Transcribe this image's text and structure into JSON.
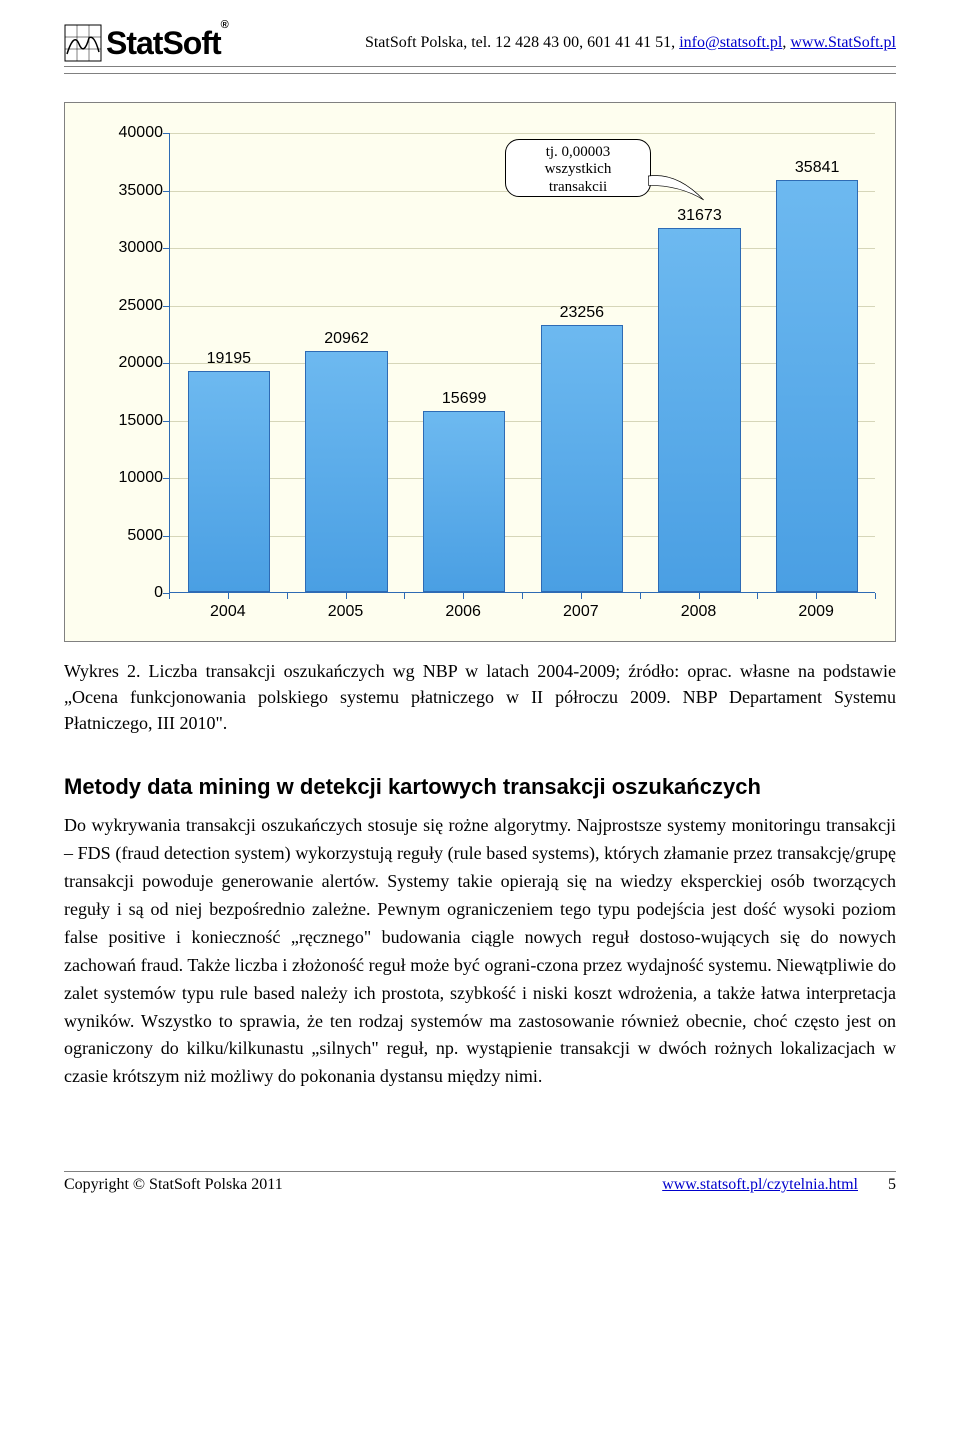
{
  "header": {
    "company": "StatSoft",
    "reg": "®",
    "contact_prefix": "StatSoft Polska, tel. 12 428 43 00, 601 41 41 51, ",
    "email": "info@statsoft.pl",
    "contact_sep": ", ",
    "url": "www.StatSoft.pl"
  },
  "chart": {
    "type": "bar",
    "background_color": "#fefeef",
    "plot_border_color": "#2e6bb4",
    "grid_color": "#d6d6b9",
    "axis_font": "Arial",
    "axis_fontsize": 16,
    "label_fontsize": 16,
    "ylim_min": 0,
    "ylim_max": 40000,
    "ytick_step": 5000,
    "yticks": [
      0,
      5000,
      10000,
      15000,
      20000,
      25000,
      30000,
      35000,
      40000
    ],
    "categories": [
      "2004",
      "2005",
      "2006",
      "2007",
      "2008",
      "2009"
    ],
    "values": [
      19195,
      20962,
      15699,
      23256,
      31673,
      35841
    ],
    "value_labels": [
      "19195",
      "20962",
      "15699",
      "23256",
      "31673",
      "35841"
    ],
    "bar_width": 0.7,
    "bar_top_color": "#6db9f0",
    "bar_bottom_color": "#4a9fe3",
    "bar_border_color": "#2e6bb4",
    "callout_lines": [
      "tj. 0,00003",
      "wszystkich",
      "transakcii"
    ]
  },
  "caption": {
    "text": "Wykres 2. Liczba transakcji oszukańczych wg NBP w latach 2004-2009; źródło: oprac. własne na podstawie „Ocena funkcjonowania polskiego systemu płatniczego w II półroczu 2009. NBP Departament Systemu Płatniczego, III 2010\"."
  },
  "section": {
    "title": "Metody data mining w detekcji kartowych transakcji oszukańczych",
    "body": "Do wykrywania transakcji oszukańczych stosuje się rożne algorytmy. Najprostsze systemy monitoringu transakcji – FDS (fraud detection system) wykorzystują reguły (rule based systems), których złamanie przez transakcję/grupę transakcji powoduje generowanie alertów. Systemy takie opierają się na wiedzy eksperckiej osób tworzących reguły i są od niej bezpośrednio zależne. Pewnym ograniczeniem tego typu podejścia jest dość wysoki poziom false positive i konieczność „ręcznego\" budowania ciągle nowych reguł dostoso-wujących się do nowych zachowań fraud. Także liczba i złożoność reguł może być ograni-czona przez wydajność systemu. Niewątpliwie do zalet systemów typu rule based należy ich prostota, szybkość i niski koszt wdrożenia, a także łatwa interpretacja wyników. Wszystko to sprawia, że ten rodzaj systemów ma zastosowanie również obecnie, choć często jest on ograniczony do kilku/kilkunastu „silnych\" reguł, np. wystąpienie transakcji w dwóch rożnych lokalizacjach w czasie krótszym niż możliwy do pokonania dystansu między nimi."
  },
  "footer": {
    "copyright": "Copyright © StatSoft Polska 2011",
    "link": "www.statsoft.pl/czytelnia.html",
    "page": "5"
  }
}
